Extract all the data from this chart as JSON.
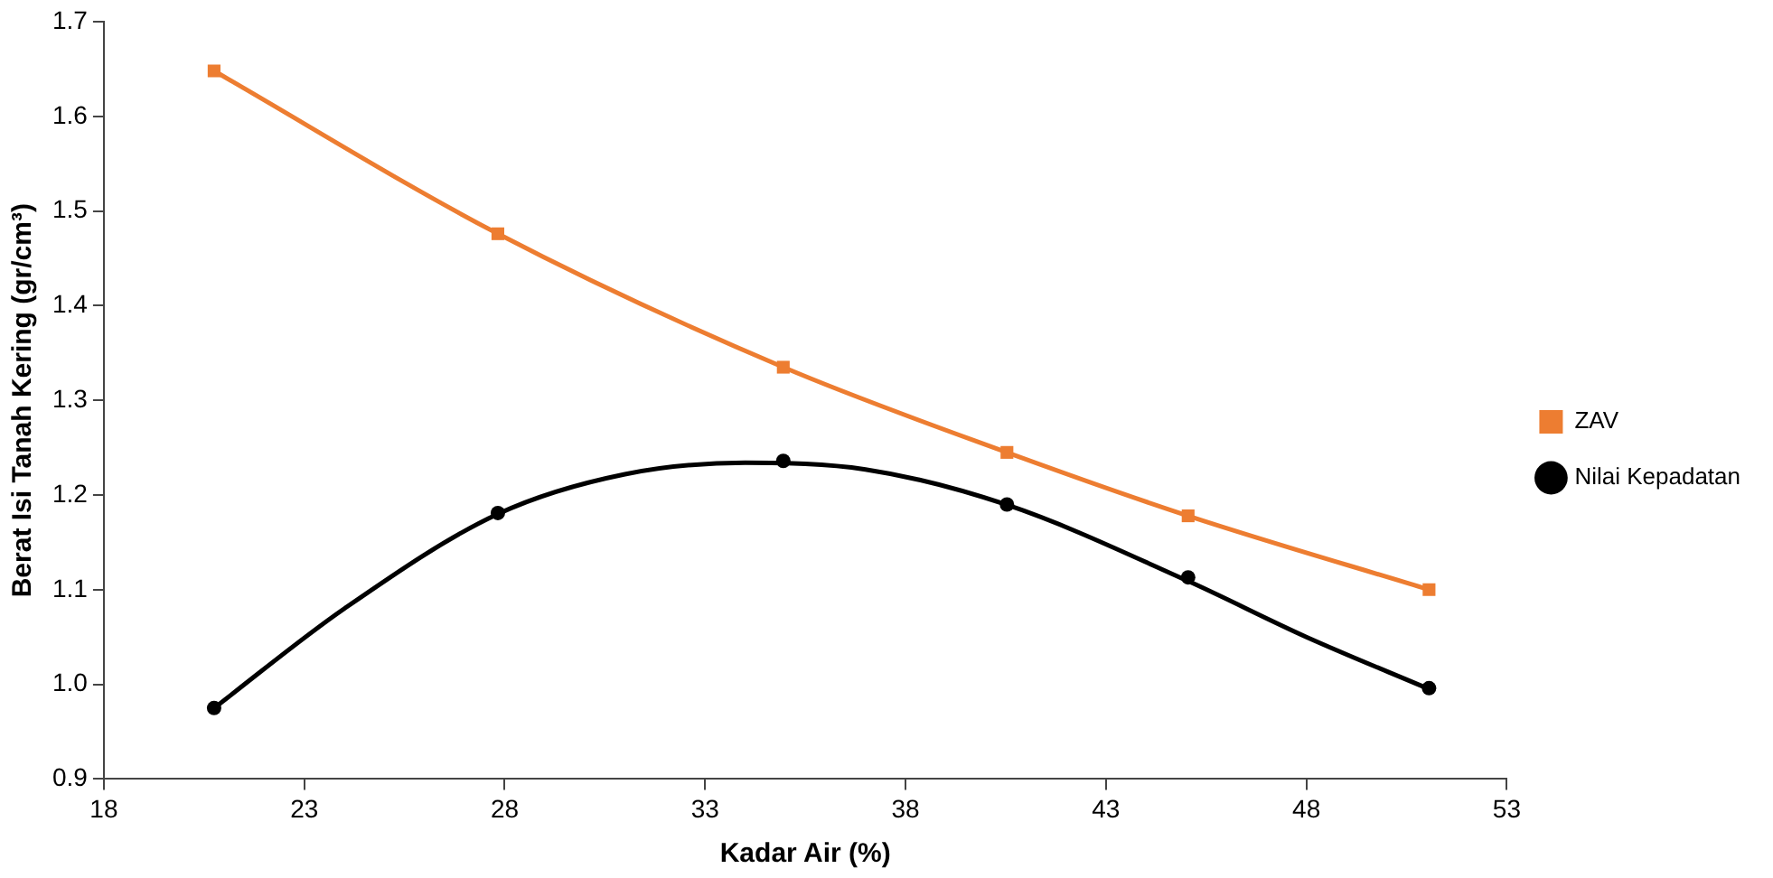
{
  "chart_data": {
    "type": "line",
    "xlabel": "Kadar Air (%)",
    "ylabel": "Berat Isi Tanah Kering (gr/cm³)",
    "series": [
      {
        "name": "ZAV",
        "color": "#ed7d31",
        "marker": "square",
        "x": [
          20.75,
          27.83,
          34.95,
          40.53,
          45.05,
          51.06
        ],
        "values": [
          1.648,
          1.476,
          1.335,
          1.245,
          1.178,
          1.1
        ]
      },
      {
        "name": "Nilai Kepadatan",
        "type": "scatter",
        "color": "#000000",
        "marker": "circle",
        "x": [
          20.75,
          27.83,
          34.95,
          40.53,
          45.05,
          51.06
        ],
        "values": [
          0.975,
          1.181,
          1.236,
          1.19,
          1.113,
          0.996
        ]
      },
      {
        "type": "line",
        "color": "#000000",
        "marker": "none",
        "x": [
          20.75,
          24,
          27.83,
          31,
          34,
          37,
          40.5,
          45,
          48,
          51.06
        ],
        "values": [
          0.975,
          1.08,
          1.18,
          1.222,
          1.234,
          1.227,
          1.19,
          1.11,
          1.05,
          0.995
        ]
      }
    ],
    "xlim": [
      18,
      53
    ],
    "xticks": [
      18,
      23,
      28,
      33,
      38,
      43,
      48,
      53
    ],
    "ylim": [
      0.9,
      1.7
    ],
    "yticks": [
      0.9,
      {
        "value": 1,
        "label": "1.0"
      },
      1.1,
      1.2,
      1.3,
      1.4,
      1.5,
      1.6,
      1.7
    ],
    "grid": false,
    "legend": "right"
  }
}
